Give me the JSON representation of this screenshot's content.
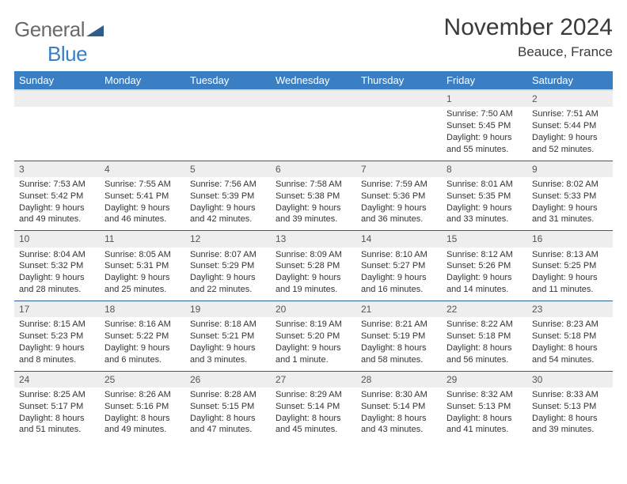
{
  "brand": {
    "general": "General",
    "blue": "Blue"
  },
  "title": "November 2024",
  "location": "Beauce, France",
  "colors": {
    "header_bg": "#3a7fc4",
    "header_text": "#ffffff",
    "daynum_bg": "#eeeeee",
    "cell_border": "#2f5d8a",
    "page_bg": "#ffffff",
    "body_text": "#333333"
  },
  "day_headers": [
    "Sunday",
    "Monday",
    "Tuesday",
    "Wednesday",
    "Thursday",
    "Friday",
    "Saturday"
  ],
  "weeks": [
    {
      "nums": [
        "",
        "",
        "",
        "",
        "",
        "1",
        "2"
      ],
      "cells": [
        null,
        null,
        null,
        null,
        null,
        {
          "sunrise": "7:50 AM",
          "sunset": "5:45 PM",
          "daylight": "9 hours and 55 minutes."
        },
        {
          "sunrise": "7:51 AM",
          "sunset": "5:44 PM",
          "daylight": "9 hours and 52 minutes."
        }
      ]
    },
    {
      "nums": [
        "3",
        "4",
        "5",
        "6",
        "7",
        "8",
        "9"
      ],
      "cells": [
        {
          "sunrise": "7:53 AM",
          "sunset": "5:42 PM",
          "daylight": "9 hours and 49 minutes."
        },
        {
          "sunrise": "7:55 AM",
          "sunset": "5:41 PM",
          "daylight": "9 hours and 46 minutes."
        },
        {
          "sunrise": "7:56 AM",
          "sunset": "5:39 PM",
          "daylight": "9 hours and 42 minutes."
        },
        {
          "sunrise": "7:58 AM",
          "sunset": "5:38 PM",
          "daylight": "9 hours and 39 minutes."
        },
        {
          "sunrise": "7:59 AM",
          "sunset": "5:36 PM",
          "daylight": "9 hours and 36 minutes."
        },
        {
          "sunrise": "8:01 AM",
          "sunset": "5:35 PM",
          "daylight": "9 hours and 33 minutes."
        },
        {
          "sunrise": "8:02 AM",
          "sunset": "5:33 PM",
          "daylight": "9 hours and 31 minutes."
        }
      ]
    },
    {
      "nums": [
        "10",
        "11",
        "12",
        "13",
        "14",
        "15",
        "16"
      ],
      "cells": [
        {
          "sunrise": "8:04 AM",
          "sunset": "5:32 PM",
          "daylight": "9 hours and 28 minutes."
        },
        {
          "sunrise": "8:05 AM",
          "sunset": "5:31 PM",
          "daylight": "9 hours and 25 minutes."
        },
        {
          "sunrise": "8:07 AM",
          "sunset": "5:29 PM",
          "daylight": "9 hours and 22 minutes."
        },
        {
          "sunrise": "8:09 AM",
          "sunset": "5:28 PM",
          "daylight": "9 hours and 19 minutes."
        },
        {
          "sunrise": "8:10 AM",
          "sunset": "5:27 PM",
          "daylight": "9 hours and 16 minutes."
        },
        {
          "sunrise": "8:12 AM",
          "sunset": "5:26 PM",
          "daylight": "9 hours and 14 minutes."
        },
        {
          "sunrise": "8:13 AM",
          "sunset": "5:25 PM",
          "daylight": "9 hours and 11 minutes."
        }
      ]
    },
    {
      "nums": [
        "17",
        "18",
        "19",
        "20",
        "21",
        "22",
        "23"
      ],
      "cells": [
        {
          "sunrise": "8:15 AM",
          "sunset": "5:23 PM",
          "daylight": "9 hours and 8 minutes."
        },
        {
          "sunrise": "8:16 AM",
          "sunset": "5:22 PM",
          "daylight": "9 hours and 6 minutes."
        },
        {
          "sunrise": "8:18 AM",
          "sunset": "5:21 PM",
          "daylight": "9 hours and 3 minutes."
        },
        {
          "sunrise": "8:19 AM",
          "sunset": "5:20 PM",
          "daylight": "9 hours and 1 minute."
        },
        {
          "sunrise": "8:21 AM",
          "sunset": "5:19 PM",
          "daylight": "8 hours and 58 minutes."
        },
        {
          "sunrise": "8:22 AM",
          "sunset": "5:18 PM",
          "daylight": "8 hours and 56 minutes."
        },
        {
          "sunrise": "8:23 AM",
          "sunset": "5:18 PM",
          "daylight": "8 hours and 54 minutes."
        }
      ]
    },
    {
      "nums": [
        "24",
        "25",
        "26",
        "27",
        "28",
        "29",
        "30"
      ],
      "cells": [
        {
          "sunrise": "8:25 AM",
          "sunset": "5:17 PM",
          "daylight": "8 hours and 51 minutes."
        },
        {
          "sunrise": "8:26 AM",
          "sunset": "5:16 PM",
          "daylight": "8 hours and 49 minutes."
        },
        {
          "sunrise": "8:28 AM",
          "sunset": "5:15 PM",
          "daylight": "8 hours and 47 minutes."
        },
        {
          "sunrise": "8:29 AM",
          "sunset": "5:14 PM",
          "daylight": "8 hours and 45 minutes."
        },
        {
          "sunrise": "8:30 AM",
          "sunset": "5:14 PM",
          "daylight": "8 hours and 43 minutes."
        },
        {
          "sunrise": "8:32 AM",
          "sunset": "5:13 PM",
          "daylight": "8 hours and 41 minutes."
        },
        {
          "sunrise": "8:33 AM",
          "sunset": "5:13 PM",
          "daylight": "8 hours and 39 minutes."
        }
      ]
    }
  ],
  "labels": {
    "sunrise": "Sunrise: ",
    "sunset": "Sunset: ",
    "daylight": "Daylight: "
  }
}
